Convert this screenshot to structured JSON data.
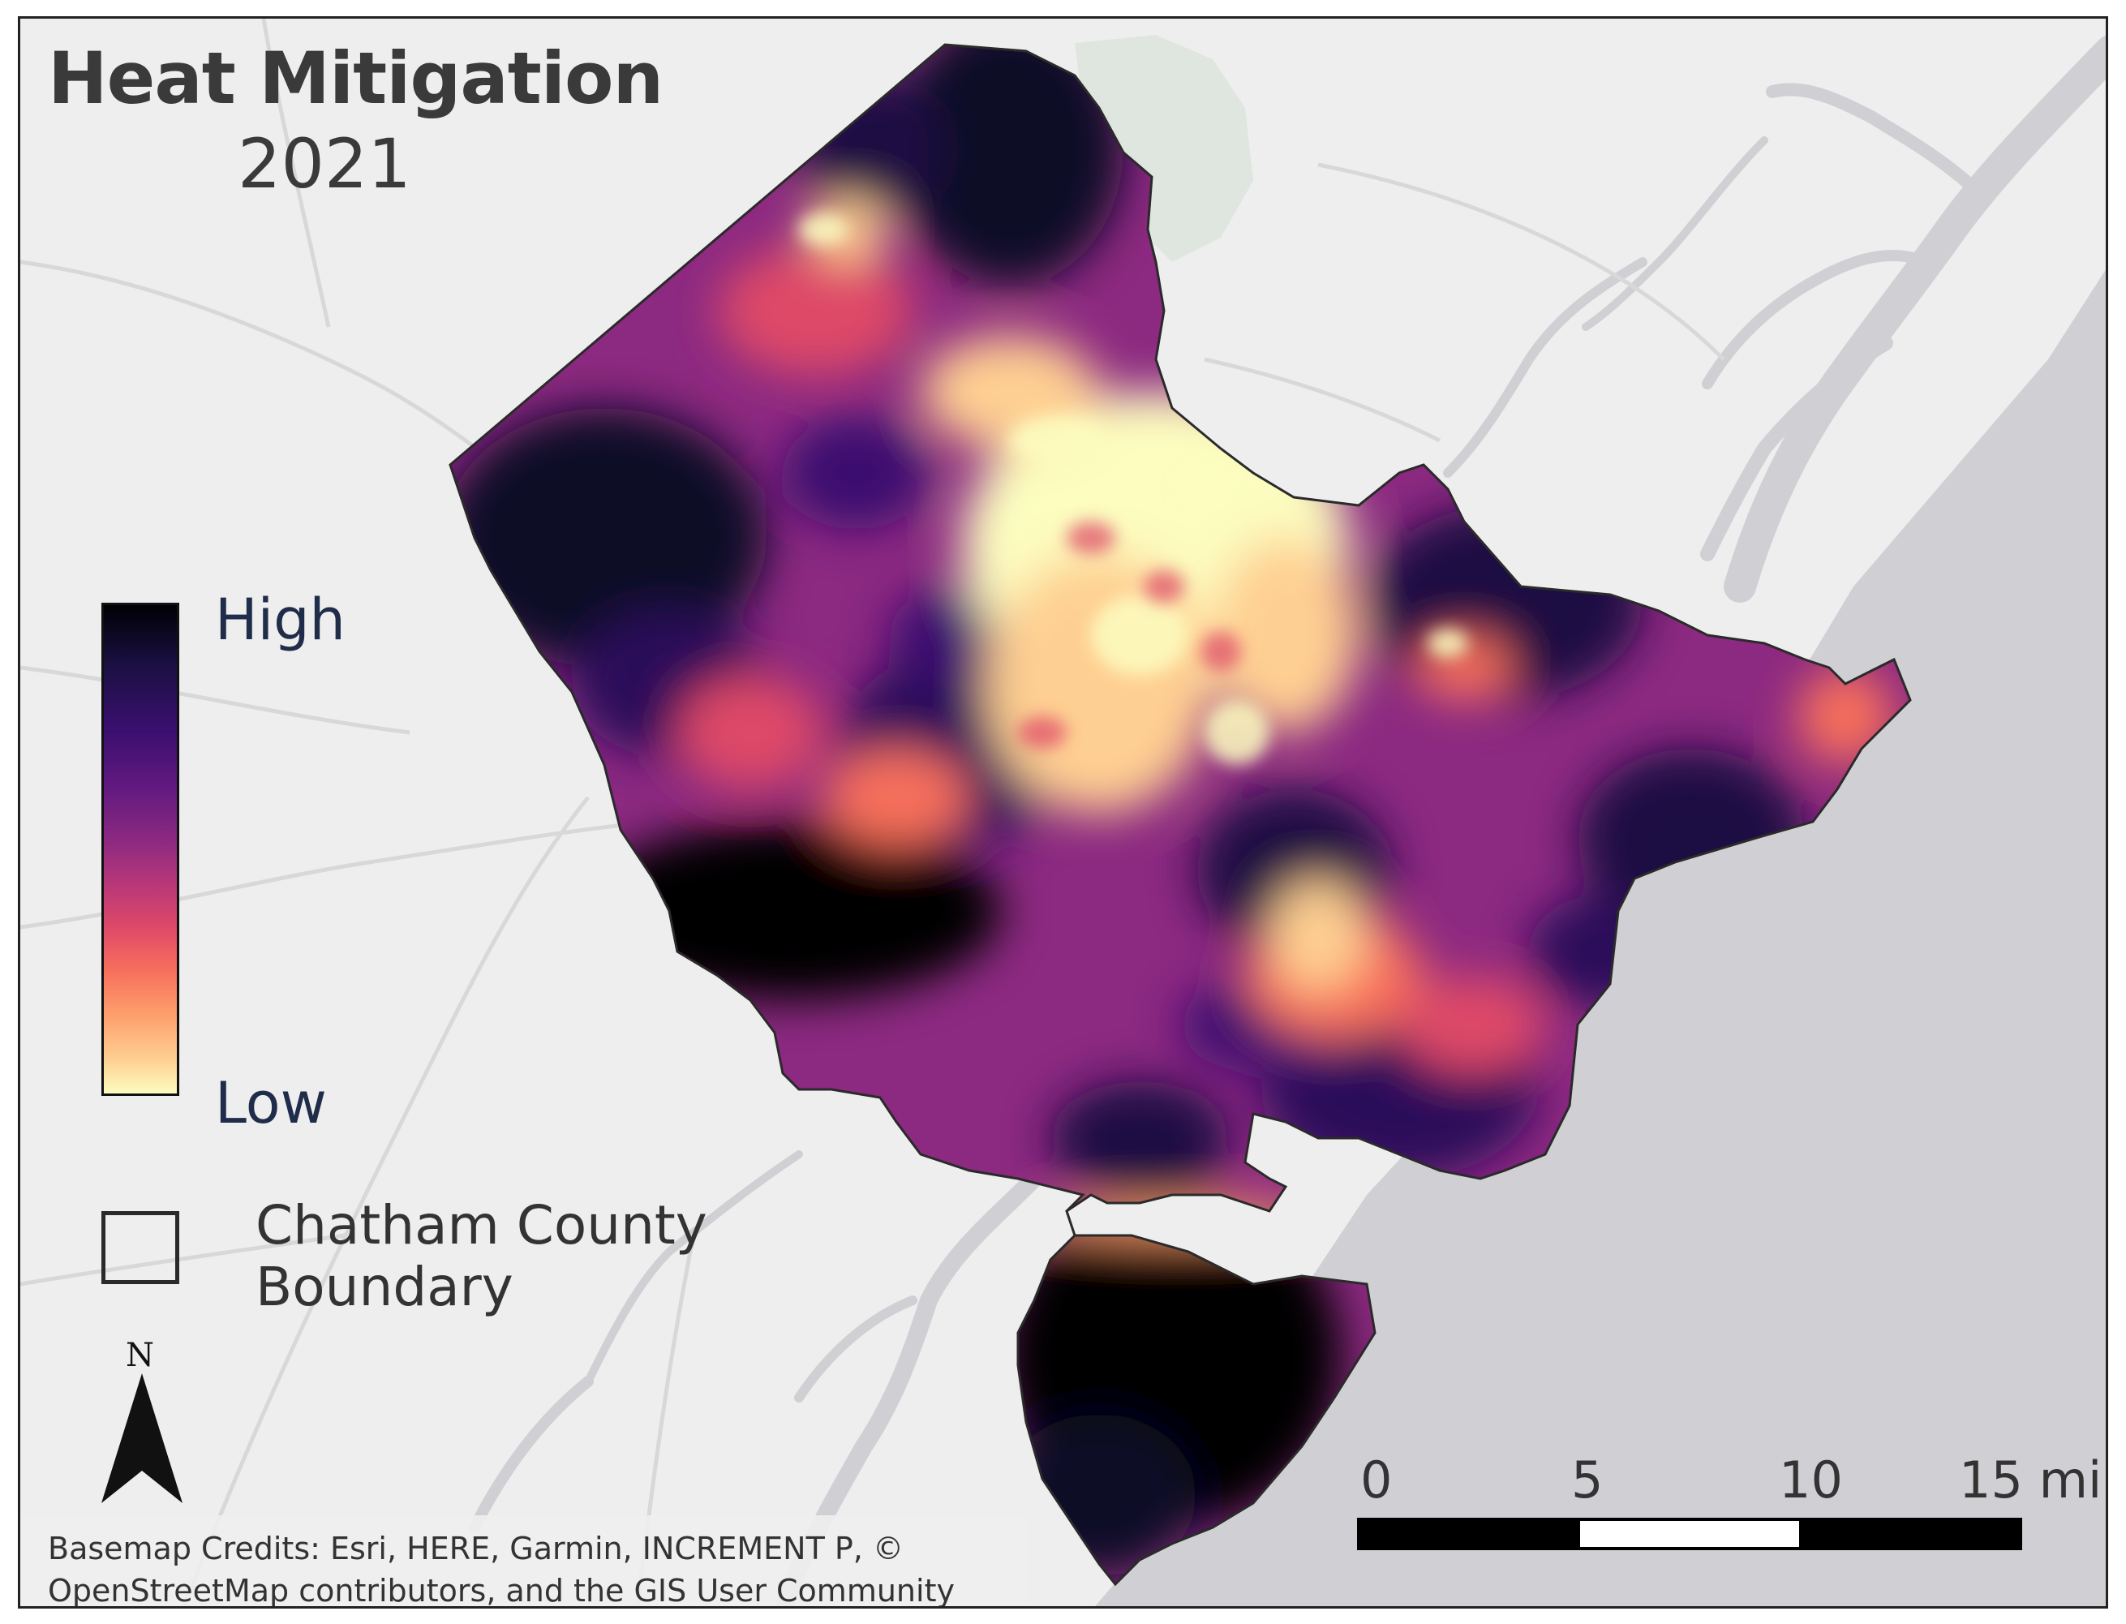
{
  "map": {
    "title": "Heat Mitigation",
    "subtitle": "2021",
    "legend": {
      "high_label": "High",
      "low_label": "Low",
      "colors": [
        "#000004",
        "#3b0f70",
        "#8c2981",
        "#de4968",
        "#fe9f6d",
        "#fcfdbf"
      ]
    },
    "boundary_legend": {
      "label": "Chatham County Boundary",
      "color": "#2a2a2a"
    },
    "north_arrow": {
      "label": "N",
      "icon": "north-arrow-icon"
    },
    "scale_bar": {
      "ticks": [
        "0",
        "5",
        "10",
        "15 mi"
      ],
      "segment_colors": [
        "#000000",
        "#ffffff",
        "#000000"
      ]
    },
    "credits": "Basemap Credits: Esri, HERE, Garmin, INCREMENT P, © OpenStreetMap contributors, and the GIS User Community",
    "colors": {
      "land": "#eeeeee",
      "water": "#d0d0d4",
      "roads": "#d8d8d8",
      "park": "#dfe6df"
    }
  }
}
